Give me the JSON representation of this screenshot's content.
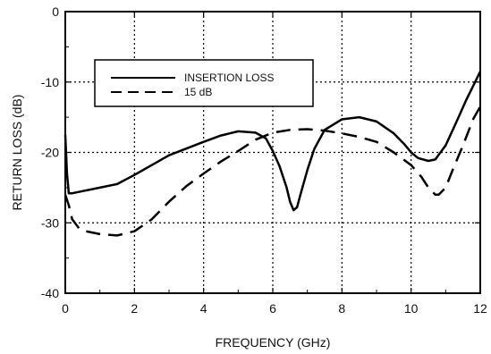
{
  "chart_data": {
    "type": "line",
    "xlabel": "FREQUENCY (GHz)",
    "ylabel": "RETURN LOSS (dB)",
    "xlim": [
      0,
      12
    ],
    "ylim": [
      -40,
      0
    ],
    "x_ticks": [
      0,
      2,
      4,
      6,
      8,
      10,
      12
    ],
    "y_ticks": [
      0,
      -10,
      -20,
      -30,
      -40
    ],
    "x_tick_labels": [
      "0",
      "2",
      "4",
      "6",
      "8",
      "10",
      "12"
    ],
    "y_tick_labels": [
      "0",
      "-10",
      "-20",
      "-30",
      "-40"
    ],
    "grid": true,
    "legend_position": "upper-left",
    "series": [
      {
        "name": "INSERTION LOSS",
        "style": "solid",
        "color": "#000000",
        "x": [
          0.0,
          0.05,
          0.1,
          0.2,
          0.5,
          1.0,
          1.5,
          2.0,
          3.0,
          4.0,
          4.5,
          5.0,
          5.5,
          5.8,
          6.0,
          6.2,
          6.4,
          6.5,
          6.6,
          6.7,
          6.8,
          7.0,
          7.2,
          7.5,
          8.0,
          8.5,
          9.0,
          9.5,
          9.8,
          10.0,
          10.2,
          10.5,
          10.7,
          11.0,
          11.3,
          11.6,
          11.8,
          12.0
        ],
        "y": [
          -17.5,
          -23.0,
          -25.8,
          -25.8,
          -25.5,
          -25.0,
          -24.5,
          -23.2,
          -20.4,
          -18.5,
          -17.6,
          -17.0,
          -17.2,
          -18.0,
          -19.8,
          -22.0,
          -25.0,
          -27.0,
          -28.2,
          -27.8,
          -26.0,
          -22.5,
          -19.5,
          -16.8,
          -15.3,
          -15.0,
          -15.6,
          -17.3,
          -18.8,
          -20.0,
          -20.8,
          -21.2,
          -21.0,
          -19.0,
          -15.8,
          -12.5,
          -10.5,
          -8.5
        ]
      },
      {
        "name": "15 dB",
        "style": "dashed",
        "color": "#000000",
        "x": [
          0.0,
          0.1,
          0.2,
          0.4,
          0.6,
          1.0,
          1.5,
          2.0,
          2.5,
          3.0,
          3.5,
          4.0,
          4.5,
          5.0,
          5.5,
          6.0,
          6.5,
          7.0,
          7.5,
          8.0,
          8.5,
          9.0,
          9.5,
          10.0,
          10.3,
          10.5,
          10.7,
          10.8,
          11.0,
          11.2,
          11.5,
          11.8,
          12.0
        ],
        "y": [
          -26.0,
          -27.5,
          -29.5,
          -30.8,
          -31.2,
          -31.6,
          -31.8,
          -31.2,
          -29.5,
          -27.0,
          -24.8,
          -23.0,
          -21.3,
          -19.8,
          -18.2,
          -17.2,
          -16.8,
          -16.7,
          -16.9,
          -17.3,
          -17.8,
          -18.5,
          -20.0,
          -21.8,
          -23.5,
          -25.0,
          -26.0,
          -26.0,
          -25.0,
          -22.5,
          -19.0,
          -15.2,
          -13.5
        ]
      }
    ]
  }
}
